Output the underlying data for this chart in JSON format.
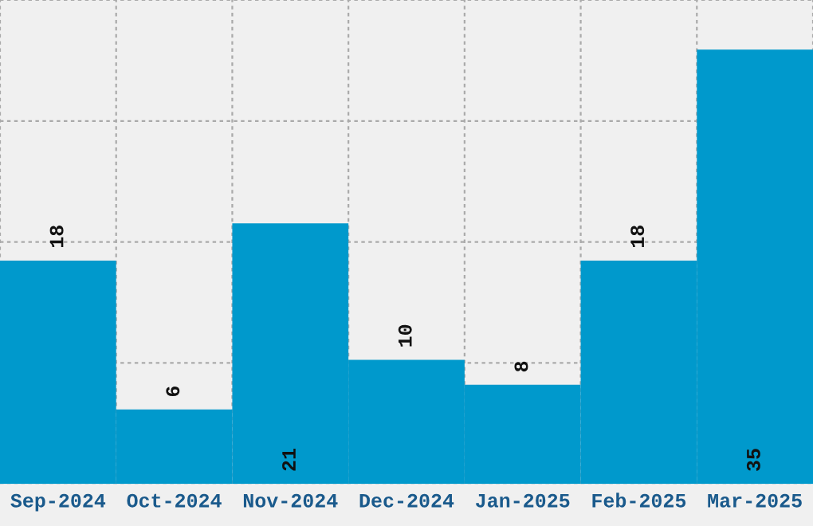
{
  "chart_data": {
    "type": "bar",
    "categories": [
      "Sep-2024",
      "Oct-2024",
      "Nov-2024",
      "Dec-2024",
      "Jan-2025",
      "Feb-2025",
      "Mar-2025"
    ],
    "values": [
      18,
      6,
      21,
      10,
      8,
      18,
      35
    ],
    "color": "#0099cc",
    "ylim": [
      0,
      39
    ],
    "yticks": [
      {
        "value": 0,
        "label": null
      },
      {
        "value": 9.75,
        "label": null
      },
      {
        "value": 19.5,
        "label": null
      },
      {
        "value": 29.25,
        "label": null
      },
      {
        "value": 39,
        "label": null
      }
    ],
    "tick_labels": "x",
    "grid": true,
    "data_labels": true
  }
}
